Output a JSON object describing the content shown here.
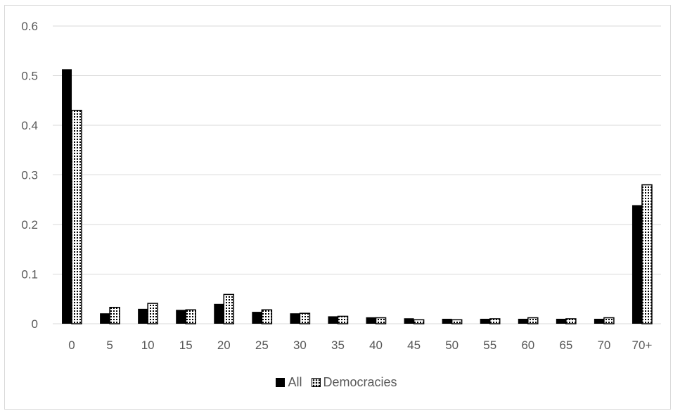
{
  "caption": "",
  "chart_data": {
    "type": "bar",
    "title": "",
    "xlabel": "",
    "ylabel": "",
    "ylim": [
      0,
      0.6
    ],
    "yticks": [
      "0",
      "0.1",
      "0.2",
      "0.3",
      "0.4",
      "0.5",
      "0.6"
    ],
    "grid": true,
    "legend_position": "bottom",
    "categories": [
      "0",
      "5",
      "10",
      "15",
      "20",
      "25",
      "30",
      "35",
      "40",
      "45",
      "50",
      "55",
      "60",
      "65",
      "70",
      "70+"
    ],
    "series": [
      {
        "name": "All",
        "color": "#000000",
        "pattern": "solid",
        "values": [
          0.513,
          0.021,
          0.03,
          0.028,
          0.04,
          0.024,
          0.021,
          0.015,
          0.013,
          0.011,
          0.01,
          0.01,
          0.01,
          0.01,
          0.01,
          0.239
        ]
      },
      {
        "name": "Democracies",
        "color": "#000000",
        "pattern": "dotted",
        "values": [
          0.43,
          0.033,
          0.041,
          0.028,
          0.059,
          0.028,
          0.021,
          0.015,
          0.012,
          0.008,
          0.008,
          0.01,
          0.012,
          0.01,
          0.012,
          0.28
        ]
      }
    ]
  }
}
